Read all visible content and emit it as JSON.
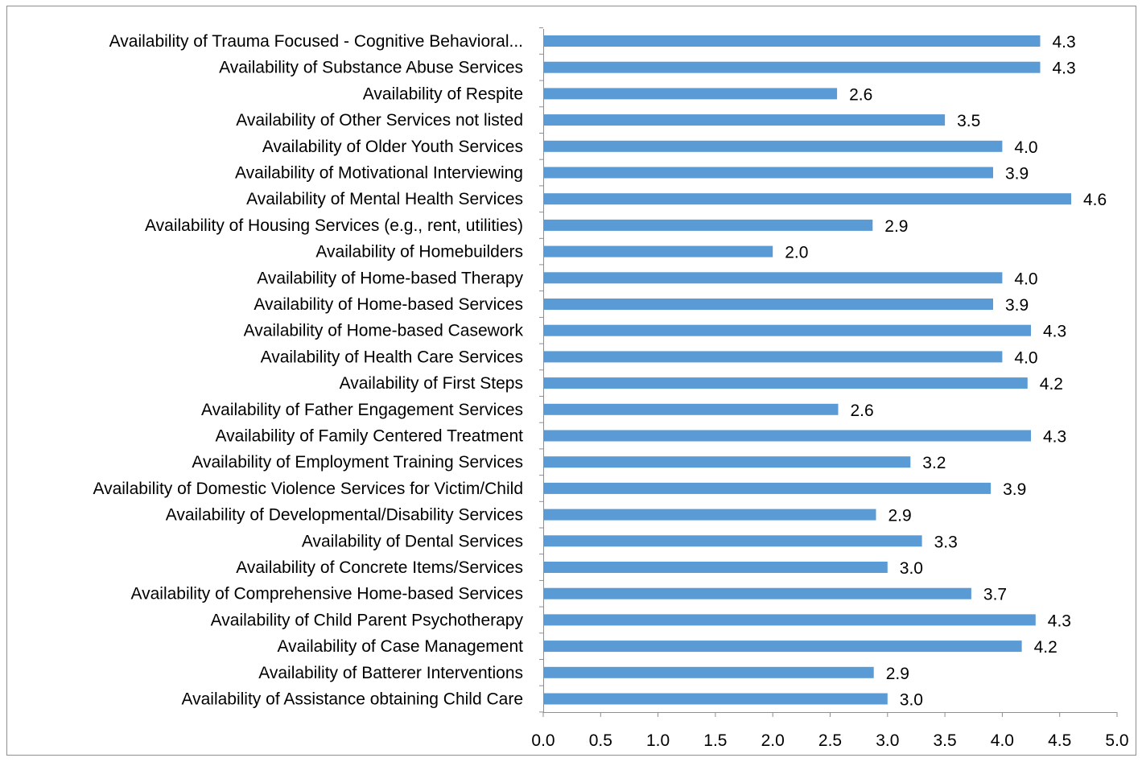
{
  "chart_data": {
    "type": "bar",
    "orientation": "horizontal",
    "categories": [
      "Availability of Trauma Focused - Cognitive Behavioral...",
      "Availability of Substance Abuse Services",
      "Availability of Respite",
      "Availability of Other Services not listed",
      "Availability of Older Youth Services",
      "Availability of Motivational Interviewing",
      "Availability of Mental Health Services",
      "Availability of Housing Services (e.g., rent, utilities)",
      "Availability of Homebuilders",
      "Availability of Home-based Therapy",
      "Availability of Home-based Services",
      "Availability of Home-based Casework",
      "Availability of Health Care Services",
      "Availability of First Steps",
      "Availability of Father Engagement Services",
      "Availability of Family Centered Treatment",
      "Availability of Employment Training Services",
      "Availability of Domestic Violence Services for Victim/Child",
      "Availability of Developmental/Disability Services",
      "Availability of Dental Services",
      "Availability of Concrete Items/Services",
      "Availability of Comprehensive Home-based Services",
      "Availability of Child Parent Psychotherapy",
      "Availability of Case Management",
      "Availability of Batterer Interventions",
      "Availability of Assistance obtaining Child Care"
    ],
    "values": [
      4.33,
      4.33,
      2.56,
      3.5,
      4.0,
      3.92,
      4.6,
      2.87,
      2.0,
      4.0,
      3.92,
      4.25,
      4.0,
      4.22,
      2.57,
      4.25,
      3.2,
      3.9,
      2.9,
      3.3,
      3.0,
      3.73,
      4.29,
      4.17,
      2.88,
      3.0
    ],
    "value_labels": [
      "4.3",
      "4.3",
      "2.6",
      "3.5",
      "4.0",
      "3.9",
      "4.6",
      "2.9",
      "2.0",
      "4.0",
      "3.9",
      "4.3",
      "4.0",
      "4.2",
      "2.6",
      "4.3",
      "3.2",
      "3.9",
      "2.9",
      "3.3",
      "3.0",
      "3.7",
      "4.3",
      "4.2",
      "2.9",
      "3.0"
    ],
    "xlim": [
      0,
      5
    ],
    "x_ticks": [
      "0.0",
      "0.5",
      "1.0",
      "1.5",
      "2.0",
      "2.5",
      "3.0",
      "3.5",
      "4.0",
      "4.5",
      "5.0"
    ],
    "title": "",
    "xlabel": "",
    "ylabel": "",
    "grid": false,
    "legend": "none",
    "bar_color": "#5b9bd5"
  }
}
